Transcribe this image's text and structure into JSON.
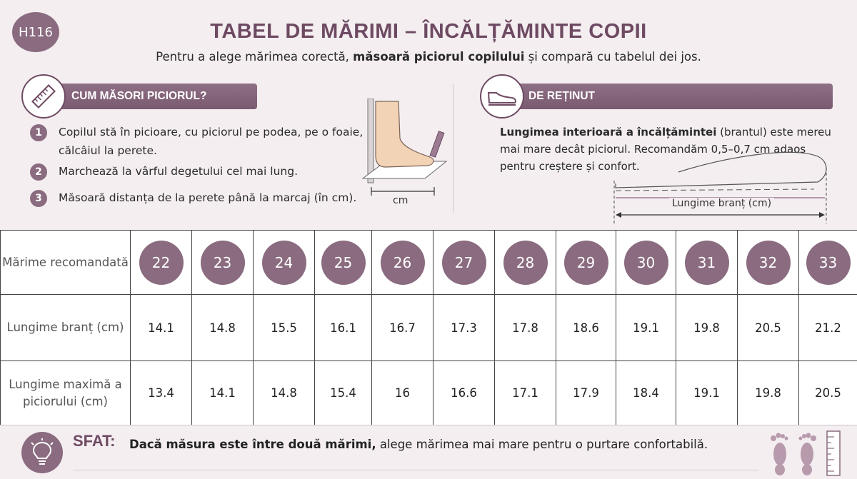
{
  "header": {
    "code": "H116",
    "title": "TABEL DE MĂRIMI – ÎNCĂLȚĂMINTE COPII",
    "subtitle_pre": "Pentru a alege mărimea corectă, ",
    "subtitle_bold": "măsoară piciorul copilului",
    "subtitle_post": " și compară cu tabelul dei jos."
  },
  "how_to_measure": {
    "heading": "CUM MĂSORI PICIORUL?",
    "icon": "ruler-icon",
    "steps": [
      {
        "num": "1",
        "text": "Copilul stă în picioare, cu piciorul pe podea, pe o foaie, călcâiul la perete."
      },
      {
        "num": "2",
        "text": "Marchează la vârful degetului cel mai lung."
      },
      {
        "num": "3",
        "text": "Măsoară distanța de la perete până la marcaj (în cm)."
      }
    ],
    "illustration_label": "cm"
  },
  "remember": {
    "heading": "DE REȚINUT",
    "icon": "shoe-icon",
    "text_bold": "Lungimea interioară a încălțămintei",
    "text_rest": " (brantul) este mereu mai mare decât piciorul. Recomandăm 0,5–0,7 cm adaos pentru creștere și confort.",
    "illustration_label": "Lungime branț (cm)"
  },
  "table": {
    "row_labels": {
      "size": "Mărime recomandată",
      "insole": "Lungime branț (cm)",
      "foot": "Lungime maximă a piciorului (cm)"
    },
    "sizes": [
      "22",
      "23",
      "24",
      "25",
      "26",
      "27",
      "28",
      "29",
      "30",
      "31",
      "32",
      "33"
    ],
    "insole_lengths": [
      "14.1",
      "14.8",
      "15.5",
      "16.1",
      "16.7",
      "17.3",
      "17.8",
      "18.6",
      "19.1",
      "19.8",
      "20.5",
      "21.2"
    ],
    "foot_lengths": [
      "13.4",
      "14.1",
      "14.8",
      "15.4",
      "16",
      "16.6",
      "17.1",
      "17.9",
      "18.4",
      "19.1",
      "19.8",
      "20.5"
    ]
  },
  "tip": {
    "label": "SFAT:",
    "text_bold": "Dacă măsura este între două mărimi,",
    "text_rest": " alege mărimea mai mare pentru o purtare confortabilă.",
    "icon": "lightbulb-icon"
  },
  "colors": {
    "accent": "#8a6b7f",
    "title": "#6e4a62",
    "panel_bg": "#f4eef1"
  }
}
